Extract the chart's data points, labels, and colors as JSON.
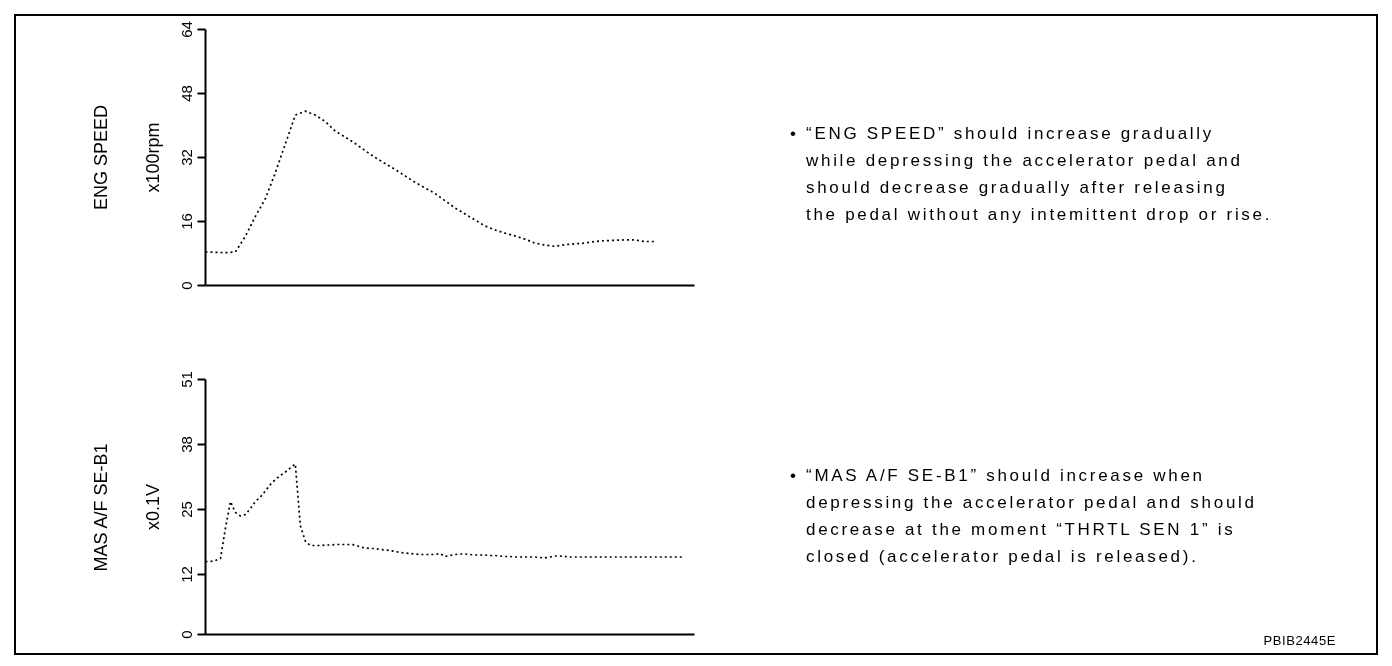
{
  "chart_data": [
    {
      "type": "line",
      "ylabel": "ENG SPEED\nx100rpm",
      "categories": [
        null,
        null,
        null,
        null,
        null,
        null,
        null,
        null,
        null,
        null,
        null,
        null,
        null,
        null,
        null,
        null,
        null,
        null,
        null,
        null,
        null,
        null,
        null,
        null,
        null,
        null,
        null,
        null,
        null,
        null,
        null,
        null,
        null,
        null,
        null,
        null,
        null,
        null,
        null,
        null,
        null,
        null,
        null,
        null,
        null,
        null,
        null,
        null,
        null,
        null
      ],
      "series": [
        {
          "color": "#000000",
          "values": [
            8.4,
            8.3,
            8.2,
            8.4,
            12.3,
            17.3,
            21.7,
            28.2,
            35.4,
            42.6,
            43.6,
            42.6,
            41.0,
            38.6,
            37.1,
            35.5,
            33.7,
            32.0,
            30.5,
            29.0,
            27.4,
            25.8,
            24.4,
            23.0,
            21.2,
            19.4,
            17.9,
            16.4,
            14.9,
            13.9,
            13.1,
            12.4,
            11.6,
            10.6,
            10.1,
            9.8,
            10.2,
            10.4,
            10.6,
            11.0,
            11.2,
            11.3,
            11.4,
            11.4,
            11.0,
            11.0,
            null,
            null,
            null,
            null
          ]
        }
      ],
      "ylim": [
        0,
        64
      ],
      "yticks": [
        0,
        16,
        32,
        48,
        64
      ],
      "tick_labels": "y",
      "line_style": "dotted",
      "marker": "none",
      "annotations": [
        "• “ENG SPEED” should increase gradually\nwhile depressing the accelerator pedal and\nshould decrease gradually after releasing\nthe pedal without any intemittent drop or rise."
      ]
    },
    {
      "type": "line",
      "ylabel": "MAS A/F SE-B1\nx0.1V",
      "categories": [
        null,
        null,
        null,
        null,
        null,
        null,
        null,
        null,
        null,
        null,
        null,
        null,
        null,
        null,
        null,
        null,
        null,
        null,
        null,
        null,
        null,
        null,
        null,
        null,
        null,
        null,
        null,
        null,
        null,
        null,
        null,
        null,
        null,
        null,
        null,
        null,
        null,
        null,
        null,
        null,
        null,
        null,
        null,
        null,
        null,
        null,
        null,
        null,
        null,
        null,
        null,
        null,
        null,
        null,
        null,
        null,
        null,
        null,
        null,
        null,
        null,
        null,
        null,
        null,
        null,
        null,
        null,
        null,
        null,
        null,
        null,
        null,
        null,
        null,
        null,
        null,
        null,
        null,
        null,
        null,
        null,
        null,
        null,
        null,
        null,
        null,
        null,
        null,
        null,
        null,
        null,
        null,
        null,
        null,
        null,
        null,
        null,
        null,
        null
      ],
      "series": [
        {
          "color": "#000000",
          "values": [
            14.6,
            14.6,
            14.8,
            15.2,
            21.3,
            26.6,
            24.4,
            23.7,
            24.0,
            25.2,
            26.6,
            27.5,
            28.7,
            30.0,
            31.0,
            31.8,
            32.5,
            33.3,
            34.1,
            21.8,
            18.7,
            17.8,
            17.8,
            17.8,
            17.9,
            17.9,
            18.0,
            18.0,
            18.0,
            18.0,
            17.9,
            17.5,
            17.3,
            17.2,
            17.2,
            17.0,
            16.9,
            16.8,
            16.6,
            16.4,
            16.3,
            16.2,
            16.1,
            16.0,
            16.0,
            16.0,
            16.0,
            16.2,
            15.6,
            15.8,
            16.0,
            16.1,
            16.1,
            16.0,
            15.9,
            15.9,
            15.9,
            15.8,
            15.8,
            15.7,
            15.6,
            15.6,
            15.5,
            15.5,
            15.5,
            15.5,
            15.5,
            15.4,
            15.3,
            15.5,
            15.7,
            15.7,
            15.6,
            15.5,
            15.5,
            15.5,
            15.5,
            15.5,
            15.5,
            15.5,
            15.5,
            15.5,
            15.5,
            15.5,
            15.5,
            15.5,
            15.5,
            15.5,
            15.5,
            15.5,
            15.5,
            15.5,
            15.5,
            15.5,
            15.5,
            15.5,
            15.5,
            null,
            null
          ]
        }
      ],
      "ylim": [
        0,
        51
      ],
      "yticks": [
        0,
        12,
        25,
        38,
        51
      ],
      "tick_labels": "y",
      "line_style": "dotted",
      "marker": "none",
      "annotations": [
        "• “MAS A/F SE-B1” should increase when\ndepressing the accelerator pedal and should\ndecrease at the moment “THRTL SEN 1” is\nclosed (accelerator pedal is released).",
        "PBIB2445E"
      ]
    }
  ]
}
